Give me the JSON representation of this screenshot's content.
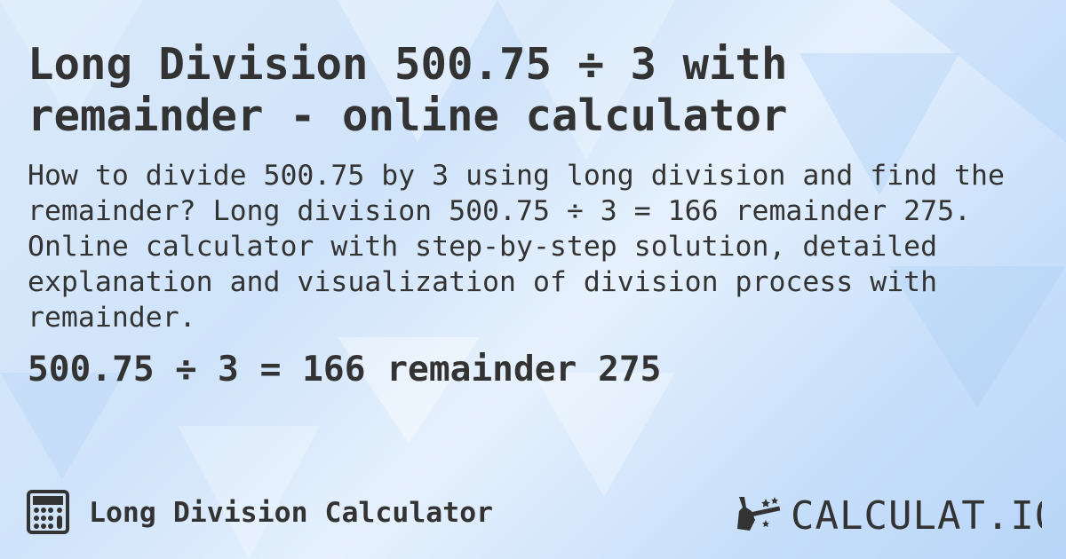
{
  "header": {
    "title": "Long Division 500.75 ÷ 3 with remainder - online calculator"
  },
  "description": "How to divide 500.75 by 3 using long division and find the remainder? Long division 500.75 ÷ 3 = 166 remainder 275. Online calculator with step-by-step solution, detailed explanation and visualization of division process with remainder.",
  "result": "500.75 ÷ 3 = 166 remainder 275",
  "footer": {
    "icon": "calculator-icon",
    "label": "Long Division Calculator"
  },
  "logo": {
    "text": "CALCULAT.IO",
    "icon": "magic-hand-wand-icon"
  },
  "colors": {
    "text": "#333333",
    "background": "#cfe3fa"
  }
}
